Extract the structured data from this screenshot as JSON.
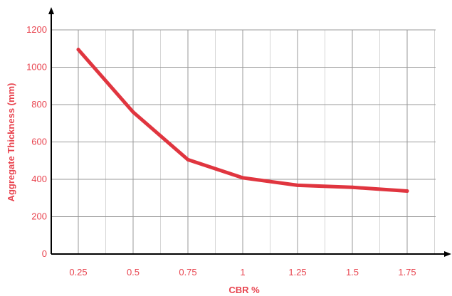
{
  "chart_data": {
    "type": "line",
    "title": "",
    "xlabel": "CBR %",
    "ylabel": "Aggregate Thickness (mm)",
    "categories": [
      "0.25",
      "0.5",
      "0.75",
      "1",
      "1.25",
      "1.5",
      "1.75"
    ],
    "y_ticks": [
      0,
      200,
      400,
      600,
      800,
      1000,
      1200
    ],
    "ylim": [
      0,
      1200
    ],
    "grid": true,
    "legend": "none",
    "series": [
      {
        "values": [
          1095,
          760,
          505,
          408,
          368,
          357,
          337
        ]
      }
    ],
    "colors": {
      "line": "#e0353f",
      "text": "#e8444f",
      "grid_major": "#999999",
      "grid_minor": "#d6d6d6",
      "axis": "#000000"
    }
  }
}
